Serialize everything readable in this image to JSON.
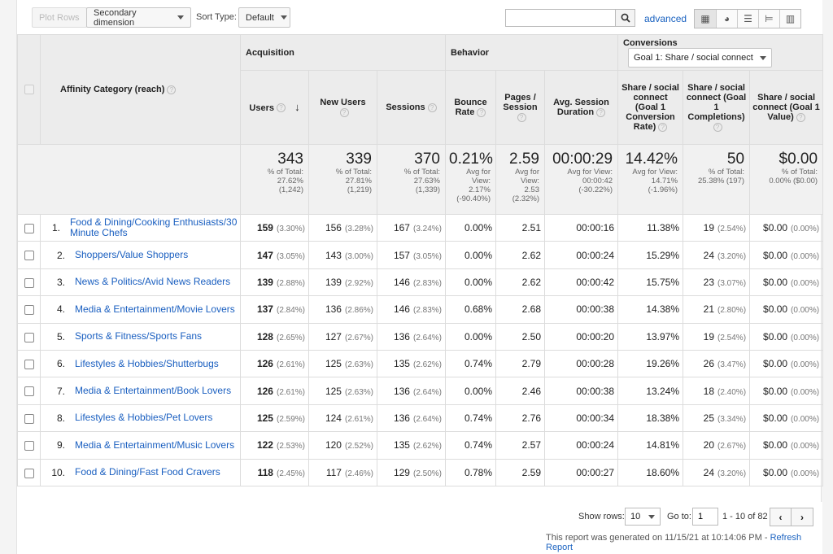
{
  "toolbar": {
    "plot_rows": "Plot Rows",
    "secondary_dimension": "Secondary dimension",
    "sort_type_label": "Sort Type:",
    "sort_type_value": "Default",
    "search_value": "",
    "advanced": "advanced",
    "view_icons": [
      "table-view-icon",
      "pie-view-icon",
      "bar-view-icon",
      "comparison-view-icon",
      "pivot-view-icon"
    ]
  },
  "header": {
    "dimension": "Affinity Category (reach)",
    "groups": {
      "acquisition": "Acquisition",
      "behavior": "Behavior",
      "conversions": "Conversions",
      "goal_select": "Goal 1: Share / social connect"
    },
    "columns": {
      "users": "Users",
      "new_users": "New Users",
      "sessions": "Sessions",
      "bounce_rate": "Bounce Rate",
      "pages_session": "Pages / Session",
      "avg_session": "Avg. Session Duration",
      "conv_rate": "Share / social connect (Goal 1 Conversion Rate)",
      "completions": "Share / social connect (Goal 1 Completions)",
      "goal_value": "Share / social connect (Goal 1 Value)"
    }
  },
  "totals": {
    "users": {
      "value": "343",
      "l1": "% of Total:",
      "l2": "27.62%",
      "l3": "(1,242)"
    },
    "new_users": {
      "value": "339",
      "l1": "% of Total:",
      "l2": "27.81%",
      "l3": "(1,219)"
    },
    "sessions": {
      "value": "370",
      "l1": "% of Total:",
      "l2": "27.63%",
      "l3": "(1,339)"
    },
    "bounce_rate": {
      "value": "0.21%",
      "l1": "Avg for",
      "l2": "View:",
      "l3": "2.17%",
      "l4": "(-90.40%)"
    },
    "pages_session": {
      "value": "2.59",
      "l1": "Avg for",
      "l2": "View:",
      "l3": "2.53",
      "l4": "(2.32%)"
    },
    "avg_session": {
      "value": "00:00:29",
      "l1": "Avg for View:",
      "l2": "00:00:42",
      "l3": "(-30.22%)"
    },
    "conv_rate": {
      "value": "14.42%",
      "l1": "Avg for View:",
      "l2": "14.71%",
      "l3": "(-1.96%)"
    },
    "completions": {
      "value": "50",
      "l1": "% of Total:",
      "l2": "25.38% (197)"
    },
    "goal_value": {
      "value": "$0.00",
      "l1": "% of Total:",
      "l2": "0.00% ($0.00)"
    }
  },
  "rows": [
    {
      "idx": "1.",
      "name": "Food & Dining/Cooking Enthusiasts/30 Minute Chefs",
      "users": "159",
      "users_pct": "(3.30%)",
      "new_users": "156",
      "new_users_pct": "(3.28%)",
      "sessions": "167",
      "sessions_pct": "(3.24%)",
      "bounce": "0.00%",
      "pages": "2.51",
      "duration": "00:00:16",
      "conv": "11.38%",
      "comp": "19",
      "comp_pct": "(2.54%)",
      "value": "$0.00",
      "value_pct": "(0.00%)"
    },
    {
      "idx": "2.",
      "name": "Shoppers/Value Shoppers",
      "users": "147",
      "users_pct": "(3.05%)",
      "new_users": "143",
      "new_users_pct": "(3.00%)",
      "sessions": "157",
      "sessions_pct": "(3.05%)",
      "bounce": "0.00%",
      "pages": "2.62",
      "duration": "00:00:24",
      "conv": "15.29%",
      "comp": "24",
      "comp_pct": "(3.20%)",
      "value": "$0.00",
      "value_pct": "(0.00%)"
    },
    {
      "idx": "3.",
      "name": "News & Politics/Avid News Readers",
      "users": "139",
      "users_pct": "(2.88%)",
      "new_users": "139",
      "new_users_pct": "(2.92%)",
      "sessions": "146",
      "sessions_pct": "(2.83%)",
      "bounce": "0.00%",
      "pages": "2.62",
      "duration": "00:00:42",
      "conv": "15.75%",
      "comp": "23",
      "comp_pct": "(3.07%)",
      "value": "$0.00",
      "value_pct": "(0.00%)"
    },
    {
      "idx": "4.",
      "name": "Media & Entertainment/Movie Lovers",
      "users": "137",
      "users_pct": "(2.84%)",
      "new_users": "136",
      "new_users_pct": "(2.86%)",
      "sessions": "146",
      "sessions_pct": "(2.83%)",
      "bounce": "0.68%",
      "pages": "2.68",
      "duration": "00:00:38",
      "conv": "14.38%",
      "comp": "21",
      "comp_pct": "(2.80%)",
      "value": "$0.00",
      "value_pct": "(0.00%)"
    },
    {
      "idx": "5.",
      "name": "Sports & Fitness/Sports Fans",
      "users": "128",
      "users_pct": "(2.65%)",
      "new_users": "127",
      "new_users_pct": "(2.67%)",
      "sessions": "136",
      "sessions_pct": "(2.64%)",
      "bounce": "0.00%",
      "pages": "2.50",
      "duration": "00:00:20",
      "conv": "13.97%",
      "comp": "19",
      "comp_pct": "(2.54%)",
      "value": "$0.00",
      "value_pct": "(0.00%)"
    },
    {
      "idx": "6.",
      "name": "Lifestyles & Hobbies/Shutterbugs",
      "users": "126",
      "users_pct": "(2.61%)",
      "new_users": "125",
      "new_users_pct": "(2.63%)",
      "sessions": "135",
      "sessions_pct": "(2.62%)",
      "bounce": "0.74%",
      "pages": "2.79",
      "duration": "00:00:28",
      "conv": "19.26%",
      "comp": "26",
      "comp_pct": "(3.47%)",
      "value": "$0.00",
      "value_pct": "(0.00%)"
    },
    {
      "idx": "7.",
      "name": "Media & Entertainment/Book Lovers",
      "users": "126",
      "users_pct": "(2.61%)",
      "new_users": "125",
      "new_users_pct": "(2.63%)",
      "sessions": "136",
      "sessions_pct": "(2.64%)",
      "bounce": "0.00%",
      "pages": "2.46",
      "duration": "00:00:38",
      "conv": "13.24%",
      "comp": "18",
      "comp_pct": "(2.40%)",
      "value": "$0.00",
      "value_pct": "(0.00%)"
    },
    {
      "idx": "8.",
      "name": "Lifestyles & Hobbies/Pet Lovers",
      "users": "125",
      "users_pct": "(2.59%)",
      "new_users": "124",
      "new_users_pct": "(2.61%)",
      "sessions": "136",
      "sessions_pct": "(2.64%)",
      "bounce": "0.74%",
      "pages": "2.76",
      "duration": "00:00:34",
      "conv": "18.38%",
      "comp": "25",
      "comp_pct": "(3.34%)",
      "value": "$0.00",
      "value_pct": "(0.00%)"
    },
    {
      "idx": "9.",
      "name": "Media & Entertainment/Music Lovers",
      "users": "122",
      "users_pct": "(2.53%)",
      "new_users": "120",
      "new_users_pct": "(2.52%)",
      "sessions": "135",
      "sessions_pct": "(2.62%)",
      "bounce": "0.74%",
      "pages": "2.57",
      "duration": "00:00:24",
      "conv": "14.81%",
      "comp": "20",
      "comp_pct": "(2.67%)",
      "value": "$0.00",
      "value_pct": "(0.00%)"
    },
    {
      "idx": "10.",
      "name": "Food & Dining/Fast Food Cravers",
      "users": "118",
      "users_pct": "(2.45%)",
      "new_users": "117",
      "new_users_pct": "(2.46%)",
      "sessions": "129",
      "sessions_pct": "(2.50%)",
      "bounce": "0.78%",
      "pages": "2.59",
      "duration": "00:00:27",
      "conv": "18.60%",
      "comp": "24",
      "comp_pct": "(3.20%)",
      "value": "$0.00",
      "value_pct": "(0.00%)"
    }
  ],
  "footer": {
    "show_rows_label": "Show rows:",
    "show_rows_value": "10",
    "goto_label": "Go to:",
    "goto_value": "1",
    "range": "1 - 10 of 82",
    "prev": "‹",
    "next": "›",
    "generated": "This report was generated on 11/15/21 at 10:14:06 PM - ",
    "refresh": "Refresh Report"
  },
  "colors": {
    "link": "#1a5fc0",
    "header_bg": "#ececec",
    "summary_bg": "#f1f1f1"
  }
}
